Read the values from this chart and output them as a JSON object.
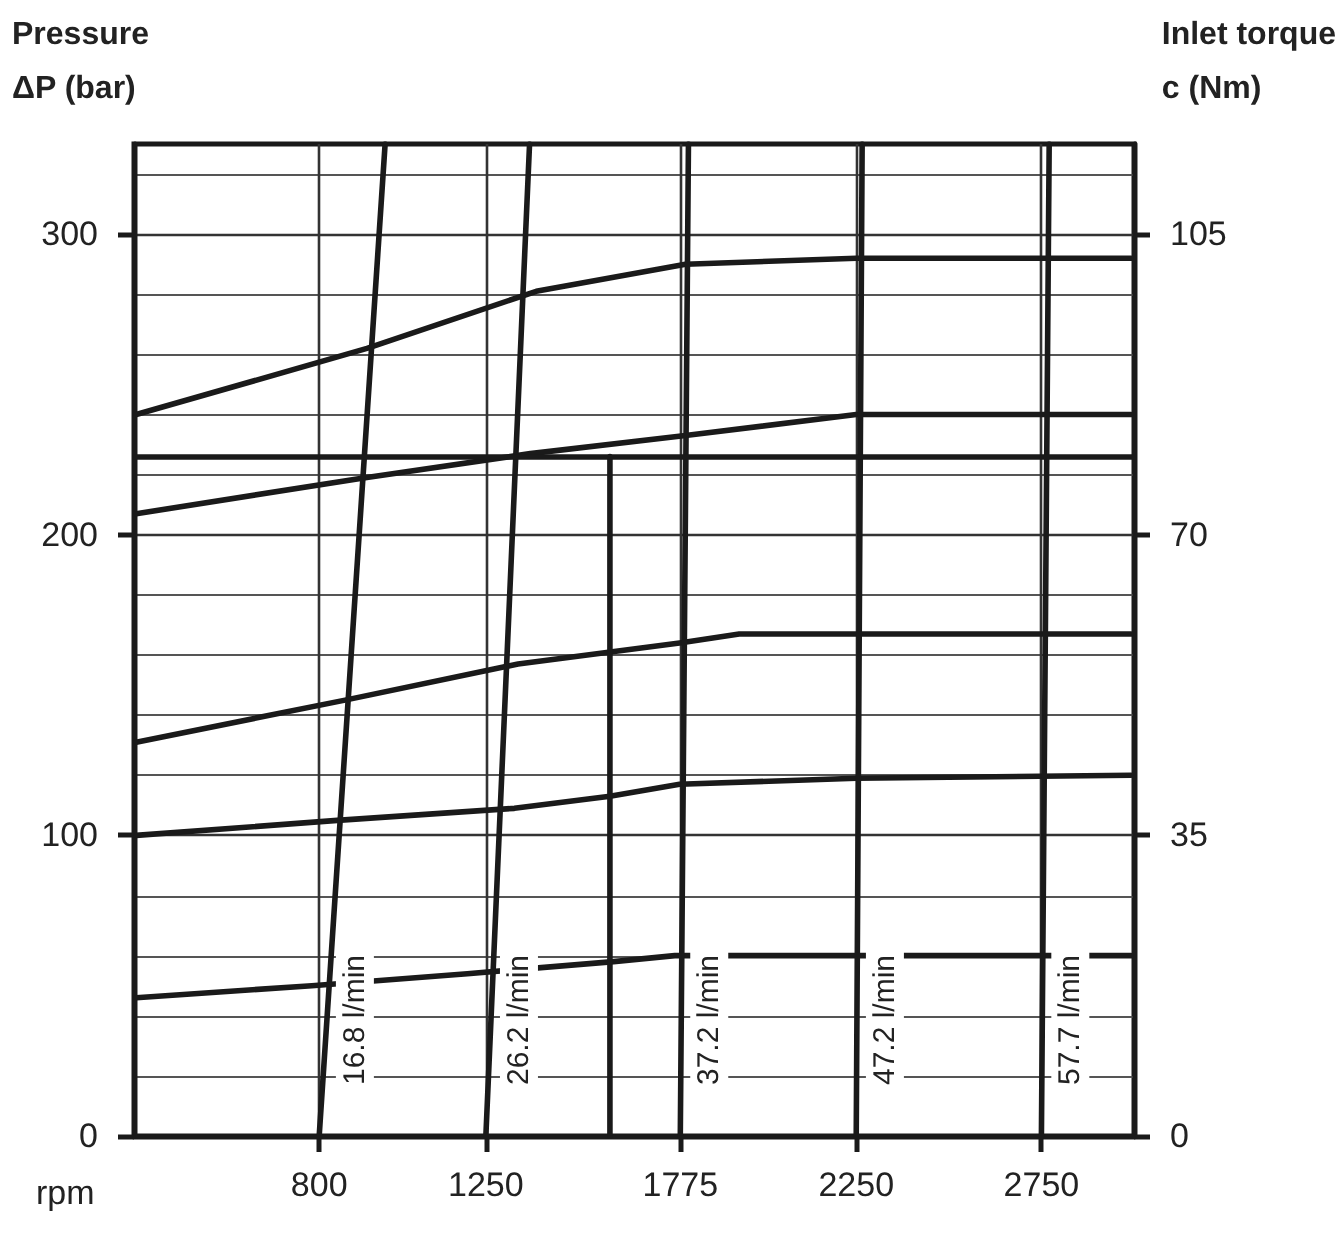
{
  "chart_data": {
    "type": "line",
    "xlabel": "rpm",
    "ylabel": "Pressure\nΔP (bar)",
    "y2label": "Inlet torque\nc (Nm)",
    "xlim": [
      300,
      3000
    ],
    "xticks": [
      800,
      1250,
      1775,
      2250,
      2750
    ],
    "ylim": [
      0,
      330
    ],
    "yticks": [
      0,
      100,
      200,
      300
    ],
    "y2lim": [
      0,
      115.5
    ],
    "y2ticks": [
      0,
      35,
      70,
      105
    ],
    "grid": true,
    "marker": "none",
    "line_style": "solid",
    "legend": false,
    "series": [
      {
        "color": "#1a1a1a",
        "x": [
          306,
          929,
          1386,
          1789,
          2250,
          2992
        ],
        "values": [
          240,
          262,
          281,
          290,
          292,
          292
        ]
      },
      {
        "color": "#1a1a1a",
        "x": [
          306,
          924,
          1370,
          1789,
          2250,
          2992
        ],
        "values": [
          207,
          219,
          227,
          233,
          240,
          240
        ]
      },
      {
        "color": "#1a1a1a",
        "x": [
          306,
          870,
          1337,
          1773,
          1934,
          2992
        ],
        "values": [
          131,
          145,
          157,
          164,
          167,
          167
        ]
      },
      {
        "color": "#1a1a1a",
        "x": [
          306,
          849,
          1327,
          1585,
          1773,
          2250,
          2992
        ],
        "values": [
          100,
          105,
          109,
          113,
          117,
          119,
          120
        ]
      },
      {
        "color": "#1a1a1a",
        "x": [
          306,
          780,
          1200,
          1595,
          1760,
          2992
        ],
        "values": [
          46,
          50,
          54,
          58,
          60,
          60
        ]
      },
      {
        "color": "#1a1a1a",
        "x": [
          1585,
          1585
        ],
        "values": [
          226,
          0
        ]
      },
      {
        "name": "16.8 l/min",
        "color": "#1a1a1a",
        "x": [
          800,
          978
        ],
        "values": [
          0,
          330
        ]
      },
      {
        "name": "26.2 l/min",
        "color": "#1a1a1a",
        "x": [
          1250,
          1368
        ],
        "values": [
          0,
          330
        ]
      },
      {
        "name": "37.2 l/min",
        "color": "#1a1a1a",
        "x": [
          1775,
          1797
        ],
        "values": [
          0,
          330
        ]
      },
      {
        "name": "47.2 l/min",
        "color": "#1a1a1a",
        "x": [
          2250,
          2266
        ],
        "values": [
          0,
          330
        ]
      },
      {
        "name": "57.7 l/min",
        "color": "#1a1a1a",
        "x": [
          2750,
          2771
        ],
        "values": [
          0,
          330
        ]
      }
    ],
    "ref_lines": [
      {
        "axis": "y",
        "value": 226,
        "color": "#1a1a1a"
      }
    ]
  }
}
